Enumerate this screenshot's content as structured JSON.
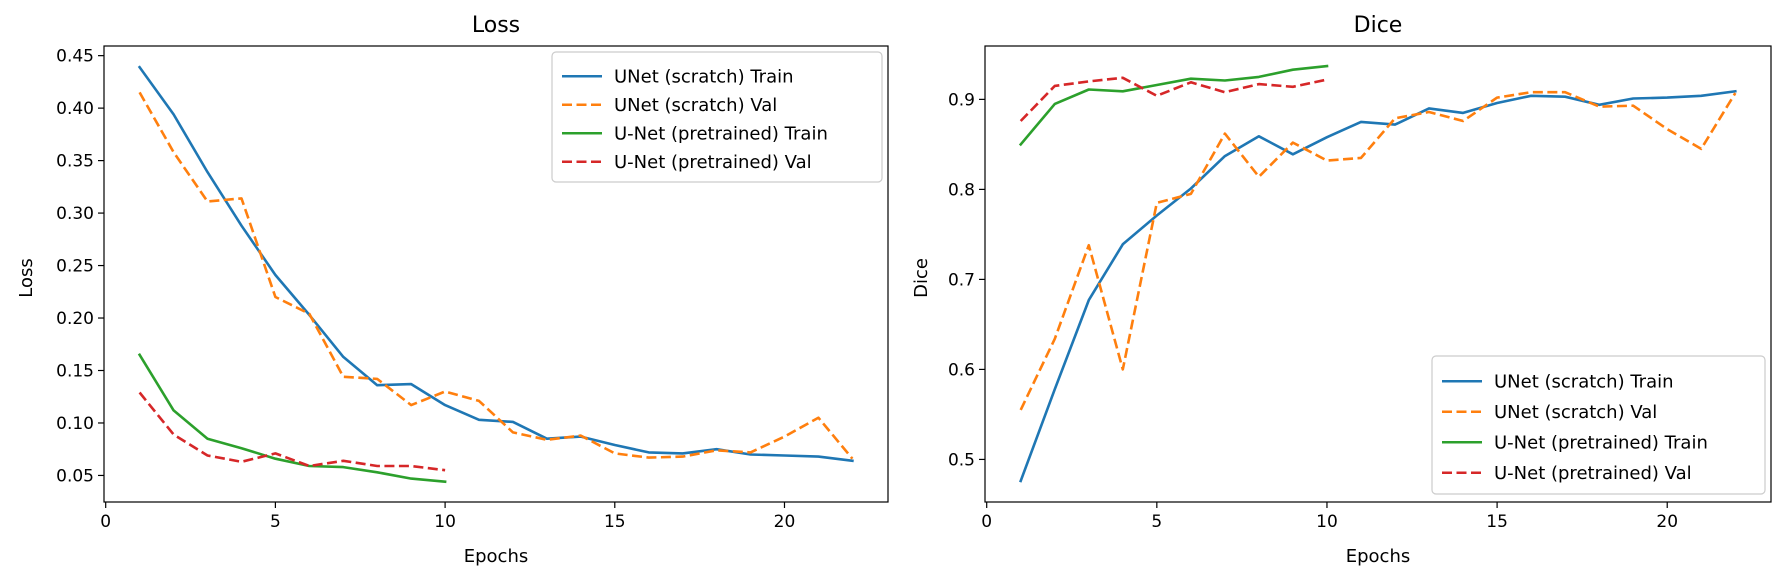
{
  "chart_data": [
    {
      "type": "line",
      "title": "Loss",
      "xlabel": "Epochs",
      "ylabel": "Loss",
      "xlim": [
        -0.05,
        23.05
      ],
      "ylim": [
        0.0247,
        0.4592
      ],
      "xticks": [
        0,
        5,
        10,
        15,
        20
      ],
      "xtick_labels": [
        "0",
        "5",
        "10",
        "15",
        "20"
      ],
      "yticks": [
        0.05,
        0.1,
        0.15,
        0.2,
        0.25,
        0.3,
        0.35,
        0.4,
        0.45
      ],
      "ytick_labels": [
        "0.05",
        "0.10",
        "0.15",
        "0.20",
        "0.25",
        "0.30",
        "0.35",
        "0.40",
        "0.45"
      ],
      "grid": false,
      "legend_position": "top-right",
      "series": [
        {
          "name": "UNet (scratch) Train",
          "color": "#1f77b4",
          "dash": "solid",
          "x": [
            1,
            2,
            3,
            4,
            5,
            6,
            7,
            8,
            9,
            10,
            11,
            12,
            13,
            14,
            15,
            16,
            17,
            18,
            19,
            20,
            21,
            22
          ],
          "y": [
            0.439,
            0.394,
            0.339,
            0.288,
            0.241,
            0.203,
            0.163,
            0.136,
            0.137,
            0.117,
            0.103,
            0.101,
            0.085,
            0.087,
            0.079,
            0.072,
            0.071,
            0.075,
            0.07,
            0.069,
            0.068,
            0.064
          ]
        },
        {
          "name": "UNet (scratch) Val",
          "color": "#ff7f0e",
          "dash": "dashed",
          "x": [
            1,
            2,
            3,
            4,
            5,
            6,
            7,
            8,
            9,
            10,
            11,
            12,
            13,
            14,
            15,
            16,
            17,
            18,
            19,
            20,
            21,
            22
          ],
          "y": [
            0.415,
            0.358,
            0.311,
            0.314,
            0.22,
            0.204,
            0.144,
            0.142,
            0.117,
            0.13,
            0.121,
            0.091,
            0.084,
            0.088,
            0.071,
            0.067,
            0.068,
            0.074,
            0.072,
            0.087,
            0.105,
            0.066
          ]
        },
        {
          "name": "U-Net (pretrained) Train",
          "color": "#2ca02c",
          "dash": "solid",
          "x": [
            1,
            2,
            3,
            4,
            5,
            6,
            7,
            8,
            9,
            10
          ],
          "y": [
            0.165,
            0.112,
            0.085,
            0.076,
            0.066,
            0.059,
            0.058,
            0.053,
            0.047,
            0.044
          ]
        },
        {
          "name": "U-Net (pretrained) Val",
          "color": "#d62728",
          "dash": "dashed",
          "x": [
            1,
            2,
            3,
            4,
            5,
            6,
            7,
            8,
            9,
            10
          ],
          "y": [
            0.129,
            0.089,
            0.069,
            0.063,
            0.071,
            0.059,
            0.064,
            0.059,
            0.059,
            0.055
          ]
        }
      ]
    },
    {
      "type": "line",
      "title": "Dice",
      "xlabel": "Epochs",
      "ylabel": "Dice",
      "xlim": [
        -0.05,
        23.05
      ],
      "ylim": [
        0.4527,
        0.9593
      ],
      "xticks": [
        0,
        5,
        10,
        15,
        20
      ],
      "xtick_labels": [
        "0",
        "5",
        "10",
        "15",
        "20"
      ],
      "yticks": [
        0.5,
        0.6,
        0.7,
        0.8,
        0.9
      ],
      "ytick_labels": [
        "0.5",
        "0.6",
        "0.7",
        "0.8",
        "0.9"
      ],
      "grid": false,
      "legend_position": "bottom-right",
      "series": [
        {
          "name": "UNet (scratch) Train",
          "color": "#1f77b4",
          "dash": "solid",
          "x": [
            1,
            2,
            3,
            4,
            5,
            6,
            7,
            8,
            9,
            10,
            11,
            12,
            13,
            14,
            15,
            16,
            17,
            18,
            19,
            20,
            21,
            22
          ],
          "y": [
            0.476,
            0.578,
            0.677,
            0.739,
            0.771,
            0.801,
            0.837,
            0.859,
            0.839,
            0.858,
            0.875,
            0.872,
            0.89,
            0.885,
            0.896,
            0.904,
            0.903,
            0.894,
            0.901,
            0.902,
            0.904,
            0.909
          ]
        },
        {
          "name": "UNet (scratch) Val",
          "color": "#ff7f0e",
          "dash": "dashed",
          "x": [
            1,
            2,
            3,
            4,
            5,
            6,
            7,
            8,
            9,
            10,
            11,
            12,
            13,
            14,
            15,
            16,
            17,
            18,
            19,
            20,
            21,
            22
          ],
          "y": [
            0.555,
            0.634,
            0.738,
            0.6,
            0.785,
            0.795,
            0.862,
            0.814,
            0.852,
            0.832,
            0.835,
            0.879,
            0.886,
            0.876,
            0.902,
            0.908,
            0.908,
            0.892,
            0.893,
            0.867,
            0.845,
            0.907
          ]
        },
        {
          "name": "U-Net (pretrained) Train",
          "color": "#2ca02c",
          "dash": "solid",
          "x": [
            1,
            2,
            3,
            4,
            5,
            6,
            7,
            8,
            9,
            10
          ],
          "y": [
            0.85,
            0.895,
            0.911,
            0.909,
            0.916,
            0.923,
            0.921,
            0.925,
            0.933,
            0.937
          ]
        },
        {
          "name": "U-Net (pretrained) Val",
          "color": "#d62728",
          "dash": "dashed",
          "x": [
            1,
            2,
            3,
            4,
            5,
            6,
            7,
            8,
            9,
            10
          ],
          "y": [
            0.876,
            0.915,
            0.92,
            0.924,
            0.904,
            0.919,
            0.908,
            0.917,
            0.914,
            0.922
          ]
        }
      ]
    }
  ]
}
